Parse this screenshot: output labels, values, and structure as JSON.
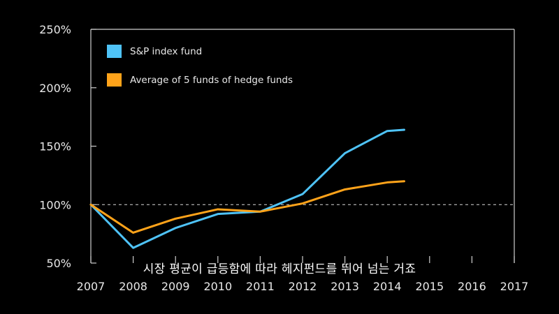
{
  "chart_data": {
    "type": "line",
    "x": [
      2007,
      2008,
      2009,
      2010,
      2011,
      2012,
      2013,
      2014,
      2014.4
    ],
    "x_tick_labels": [
      "2007",
      "2008",
      "2009",
      "2010",
      "2011",
      "2012",
      "2013",
      "2014",
      "2015",
      "2016",
      "2017"
    ],
    "y_tick_labels": [
      "50%",
      "100%",
      "150%",
      "200%",
      "250%"
    ],
    "xlim": [
      2007,
      2017
    ],
    "ylim": [
      50,
      250
    ],
    "yticks": [
      50,
      100,
      150,
      200,
      250
    ],
    "reference_line": 100,
    "series": [
      {
        "name": "S&P index fund",
        "color": "#4fc3f7",
        "values": [
          100,
          63,
          80,
          92,
          94,
          109,
          144,
          163,
          164
        ]
      },
      {
        "name": "Average of 5 funds of hedge funds",
        "color": "#ffa31a",
        "values": [
          100,
          76,
          88,
          96,
          94,
          101,
          113,
          119,
          120
        ]
      }
    ],
    "legend_position": "top-left"
  },
  "caption": "시장 평균이 급등함에 따라 헤지펀드를 뛰어 넘는 거죠"
}
